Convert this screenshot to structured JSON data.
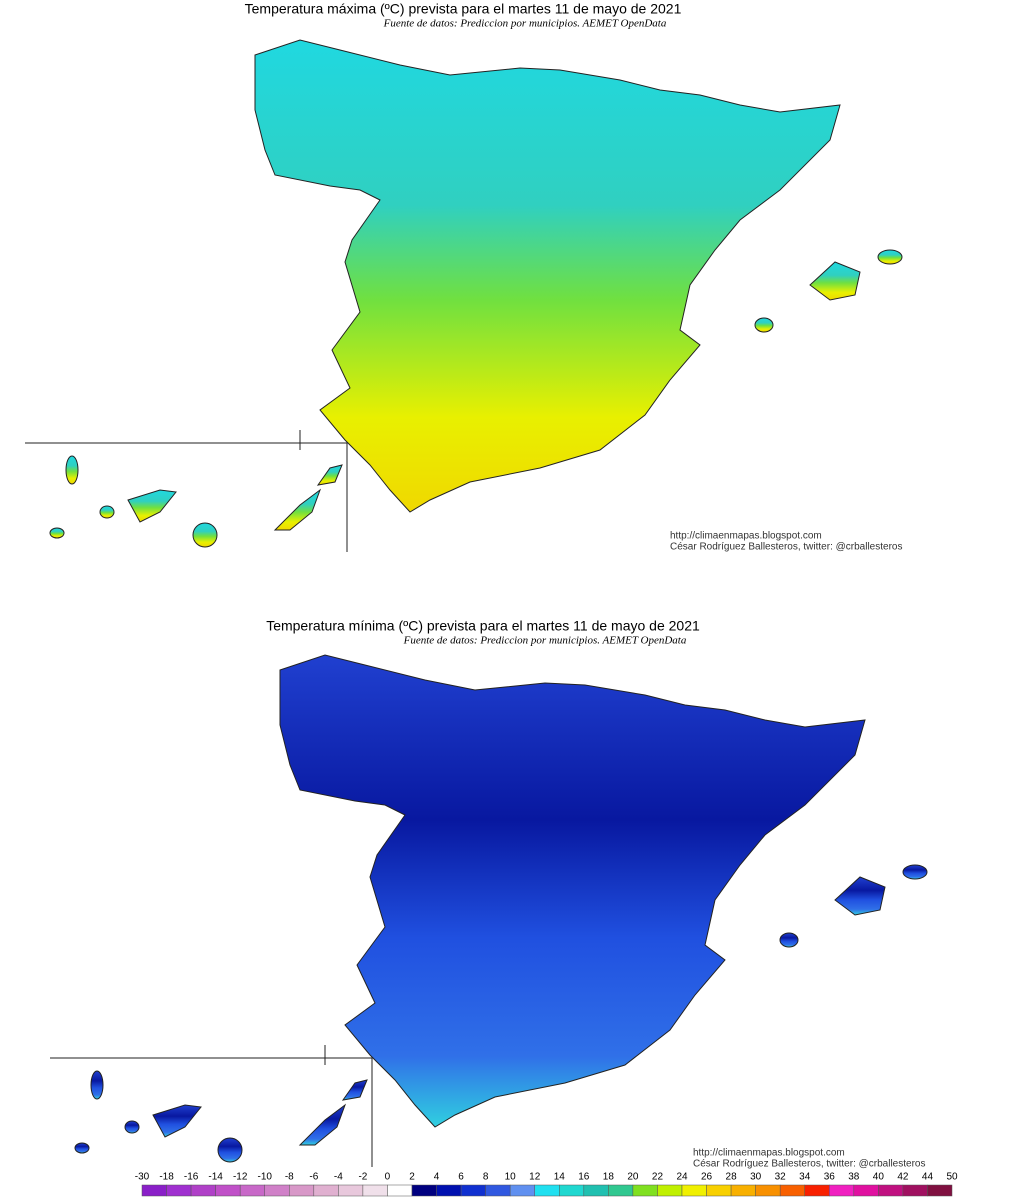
{
  "map_max": {
    "title": "Temperatura máxima (ºC) prevista para el martes 11 de mayo de 2021",
    "subtitle": "Fuente de datos: Prediccion por municipios. AEMET OpenData",
    "credit_url": "http://climaenmapas.blogspot.com",
    "credit_author": "César Rodríguez Ballesteros, twitter: @crballesteros"
  },
  "map_min": {
    "title": "Temperatura mínima (ºC) prevista para el martes 11 de mayo de 2021",
    "subtitle": "Fuente de datos: Prediccion por municipios. AEMET OpenData",
    "credit_url": "http://climaenmapas.blogspot.com",
    "credit_author": "César Rodríguez Ballesteros, twitter: @crballesteros"
  },
  "legend": {
    "ticks": [
      -30,
      -18,
      -16,
      -14,
      -12,
      -10,
      -8,
      -6,
      -4,
      -2,
      0,
      2,
      4,
      6,
      8,
      10,
      12,
      14,
      16,
      18,
      20,
      22,
      24,
      26,
      28,
      30,
      32,
      34,
      36,
      38,
      40,
      42,
      44,
      50
    ],
    "colors": [
      "#8a1fc8",
      "#a030d0",
      "#b040c8",
      "#c050c8",
      "#c868c8",
      "#d080c8",
      "#d898c8",
      "#e0b0d0",
      "#e8c8dc",
      "#f0e0ea",
      "#ffffff",
      "#000080",
      "#0010b0",
      "#1030d0",
      "#3058e0",
      "#6090f0",
      "#20e0f0",
      "#20d8d0",
      "#20c0b0",
      "#30c890",
      "#80e020",
      "#c0f000",
      "#f0f000",
      "#f8d000",
      "#f8b000",
      "#f89000",
      "#f86000",
      "#f82000",
      "#f020c0",
      "#e010a0",
      "#c01080",
      "#a01060",
      "#801040"
    ]
  }
}
